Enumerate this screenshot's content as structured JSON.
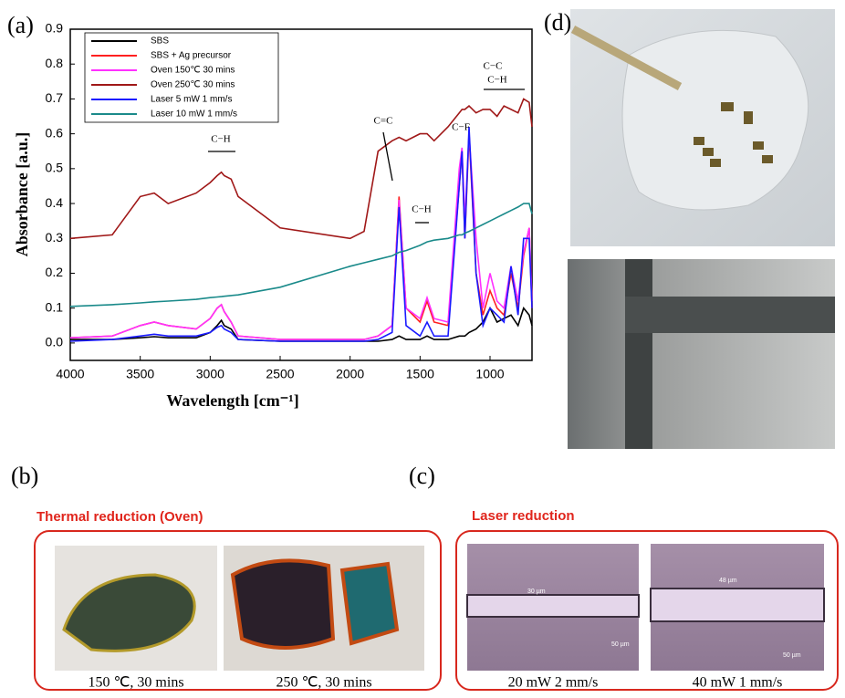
{
  "chart_data": {
    "type": "line",
    "xlabel": "Wavelength [cm⁻¹]",
    "ylabel": "Absorbance [a.u.]",
    "x": [
      4000,
      3700,
      3500,
      3400,
      3300,
      3100,
      3000,
      2950,
      2920,
      2900,
      2850,
      2800,
      2500,
      2000,
      1900,
      1800,
      1700,
      1650,
      1600,
      1500,
      1450,
      1400,
      1300,
      1220,
      1200,
      1180,
      1150,
      1100,
      1050,
      1000,
      950,
      900,
      850,
      800,
      760,
      720,
      700
    ],
    "series": [
      {
        "name": "SBS",
        "color": "#000000",
        "values": [
          0.01,
          0.01,
          0.015,
          0.018,
          0.015,
          0.015,
          0.03,
          0.05,
          0.065,
          0.05,
          0.04,
          0.01,
          0.005,
          0.005,
          0.005,
          0.005,
          0.01,
          0.02,
          0.01,
          0.01,
          0.02,
          0.01,
          0.01,
          0.02,
          0.02,
          0.02,
          0.03,
          0.04,
          0.06,
          0.1,
          0.06,
          0.07,
          0.08,
          0.05,
          0.1,
          0.08,
          0.05
        ]
      },
      {
        "name": "SBS + Ag precursor",
        "color": "#ff2020",
        "values": [
          0.015,
          0.02,
          0.05,
          0.06,
          0.05,
          0.04,
          0.07,
          0.1,
          0.11,
          0.09,
          0.06,
          0.02,
          0.01,
          0.01,
          0.01,
          0.02,
          0.05,
          0.42,
          0.1,
          0.06,
          0.12,
          0.06,
          0.05,
          0.45,
          0.55,
          0.3,
          0.6,
          0.2,
          0.08,
          0.15,
          0.1,
          0.08,
          0.2,
          0.1,
          0.25,
          0.33,
          0.1
        ]
      },
      {
        "name": "Oven 150℃ 30 mins",
        "color": "#ff30ff",
        "values": [
          0.015,
          0.02,
          0.05,
          0.06,
          0.05,
          0.04,
          0.07,
          0.1,
          0.11,
          0.09,
          0.06,
          0.02,
          0.01,
          0.01,
          0.01,
          0.02,
          0.05,
          0.41,
          0.1,
          0.07,
          0.13,
          0.07,
          0.06,
          0.5,
          0.56,
          0.35,
          0.6,
          0.3,
          0.1,
          0.2,
          0.12,
          0.1,
          0.22,
          0.12,
          0.26,
          0.33,
          0.12
        ]
      },
      {
        "name": "Oven 250℃ 30 mins",
        "color": "#a01818",
        "values": [
          0.3,
          0.31,
          0.42,
          0.43,
          0.4,
          0.43,
          0.46,
          0.48,
          0.49,
          0.48,
          0.47,
          0.42,
          0.33,
          0.3,
          0.32,
          0.55,
          0.58,
          0.59,
          0.58,
          0.6,
          0.6,
          0.58,
          0.62,
          0.66,
          0.67,
          0.67,
          0.68,
          0.66,
          0.67,
          0.67,
          0.65,
          0.68,
          0.67,
          0.66,
          0.7,
          0.69,
          0.62
        ]
      },
      {
        "name": "Laser 5 mW 1 mm/s",
        "color": "#1a1aff",
        "values": [
          0.005,
          0.01,
          0.02,
          0.025,
          0.02,
          0.02,
          0.03,
          0.045,
          0.05,
          0.04,
          0.03,
          0.01,
          0.005,
          0.005,
          0.005,
          0.01,
          0.03,
          0.39,
          0.05,
          0.02,
          0.06,
          0.02,
          0.02,
          0.45,
          0.55,
          0.3,
          0.62,
          0.2,
          0.05,
          0.1,
          0.08,
          0.06,
          0.22,
          0.08,
          0.3,
          0.3,
          0.1
        ]
      },
      {
        "name": "Laser 10 mW 1 mm/s",
        "color": "#1a8a8a",
        "values": [
          0.105,
          0.11,
          0.115,
          0.118,
          0.12,
          0.125,
          0.13,
          0.132,
          0.133,
          0.134,
          0.136,
          0.138,
          0.16,
          0.22,
          0.23,
          0.24,
          0.25,
          0.26,
          0.265,
          0.28,
          0.29,
          0.295,
          0.3,
          0.31,
          0.31,
          0.315,
          0.32,
          0.33,
          0.34,
          0.35,
          0.36,
          0.37,
          0.38,
          0.39,
          0.4,
          0.4,
          0.37
        ]
      }
    ],
    "xlim": [
      4000,
      700
    ],
    "xticks": [
      4000,
      3500,
      3000,
      2500,
      2000,
      1500,
      1000
    ],
    "ylim": [
      -0.05,
      0.9
    ],
    "yticks": [
      {
        "value": 0,
        "label": "0.0"
      },
      {
        "value": 0.1,
        "label": "0.1"
      },
      {
        "value": 0.2,
        "label": "0.2"
      },
      {
        "value": 0.3,
        "label": "0.3"
      },
      {
        "value": 0.4,
        "label": "0.4"
      },
      {
        "value": 0.5,
        "label": "0.5"
      },
      {
        "value": 0.6,
        "label": "0.6"
      },
      {
        "value": 0.7,
        "label": "0.7"
      },
      {
        "value": 0.8,
        "label": "0.8"
      },
      {
        "value": 0.9,
        "label": "0.9"
      }
    ],
    "legend": "upper left",
    "annotations": [
      "C−H",
      "C=C",
      "C−H",
      "C−F",
      "C−C",
      "C−H"
    ]
  },
  "panel_labels": [
    "(a)",
    "(b)",
    "(c)",
    "(d)"
  ],
  "thermal": {
    "title": "Thermal  reduction  (Oven)",
    "captions": [
      "150  ℃, 30 mins",
      "250  ℃, 30 mins"
    ]
  },
  "laser": {
    "title": "Laser reduction",
    "captions": [
      "20 mW 2 mm/s",
      "40 mW 1 mm/s"
    ],
    "scale_labels": [
      "30 µm",
      "50 µm",
      "48 µm",
      "50 µm"
    ]
  }
}
